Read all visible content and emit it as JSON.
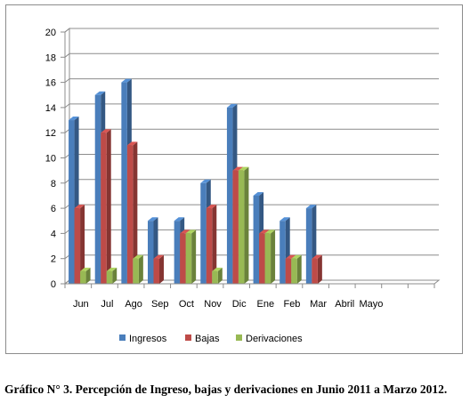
{
  "chart_data": {
    "type": "bar",
    "categories": [
      "Jun",
      "Jul",
      "Ago",
      "Sep",
      "Oct",
      "Nov",
      "Dic",
      "Ene",
      "Feb",
      "Mar",
      "Abril",
      "Mayo",
      "",
      ""
    ],
    "series": [
      {
        "name": "Ingresos",
        "color": "#4a7ebb",
        "values": [
          13,
          15,
          16,
          5,
          5,
          8,
          14,
          7,
          5,
          6,
          0,
          0,
          0,
          0
        ]
      },
      {
        "name": "Bajas",
        "color": "#be4b48",
        "values": [
          6,
          12,
          11,
          2,
          4,
          6,
          9,
          4,
          2,
          2,
          0,
          0,
          0,
          0
        ]
      },
      {
        "name": "Derivaciones",
        "color": "#98b954",
        "values": [
          1,
          1,
          2,
          0,
          4,
          1,
          9,
          4,
          2,
          0,
          0,
          0,
          0,
          0
        ]
      }
    ],
    "ylim": [
      0,
      20
    ],
    "yticks": [
      "0",
      "2",
      "4",
      "6",
      "8",
      "10",
      "12",
      "14",
      "16",
      "18",
      "20"
    ],
    "grid": true,
    "legend_position": "bottom",
    "three_d": true
  },
  "caption": "Gráfico N° 3. Percepción  de Ingreso, bajas y derivaciones en Junio 2011 a Marzo 2012."
}
